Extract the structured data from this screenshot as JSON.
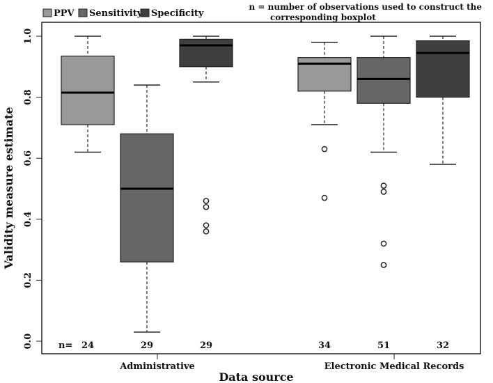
{
  "chart_data": {
    "type": "boxplot",
    "title": "",
    "xlabel": "Data source",
    "ylabel": "Validity measure estimate",
    "ylim": [
      0.0,
      1.0
    ],
    "yticks": [
      0.0,
      0.2,
      0.4,
      0.6,
      0.8,
      1.0
    ],
    "ytick_labels": [
      "0.0",
      "0.2",
      "0.4",
      "0.6",
      "0.8",
      "1.0"
    ],
    "categories": [
      "Administrative",
      "Electronic Medical Records"
    ],
    "legend": [
      {
        "label": "PPV",
        "color": "#999999"
      },
      {
        "label": "Sensitivity",
        "color": "#666666"
      },
      {
        "label": "Specificity",
        "color": "#3f3f3f"
      }
    ],
    "note_line1": "n = number of observations used to construct the",
    "note_line2": "corresponding boxplot",
    "n_prefix": "n=",
    "boxes": [
      {
        "group": "Administrative",
        "series": "PPV",
        "n": "24",
        "color": "#999999",
        "whisker_low": 0.62,
        "q1": 0.71,
        "median": 0.815,
        "q3": 0.935,
        "whisker_high": 1.0,
        "outliers": []
      },
      {
        "group": "Administrative",
        "series": "Sensitivity",
        "n": "29",
        "color": "#666666",
        "whisker_low": 0.03,
        "q1": 0.26,
        "median": 0.5,
        "q3": 0.68,
        "whisker_high": 0.84,
        "outliers": []
      },
      {
        "group": "Administrative",
        "series": "Specificity",
        "n": "29",
        "color": "#3f3f3f",
        "whisker_low": 0.85,
        "q1": 0.9,
        "median": 0.97,
        "q3": 0.99,
        "whisker_high": 1.0,
        "outliers": [
          0.46,
          0.44,
          0.38,
          0.36
        ]
      },
      {
        "group": "Electronic Medical Records",
        "series": "PPV",
        "n": "34",
        "color": "#999999",
        "whisker_low": 0.71,
        "q1": 0.82,
        "median": 0.91,
        "q3": 0.93,
        "whisker_high": 0.98,
        "outliers": [
          0.63,
          0.47
        ]
      },
      {
        "group": "Electronic Medical Records",
        "series": "Sensitivity",
        "n": "51",
        "color": "#666666",
        "whisker_low": 0.62,
        "q1": 0.78,
        "median": 0.86,
        "q3": 0.93,
        "whisker_high": 1.0,
        "outliers": [
          0.51,
          0.49,
          0.32,
          0.25
        ]
      },
      {
        "group": "Electronic Medical Records",
        "series": "Specificity",
        "n": "32",
        "color": "#3f3f3f",
        "whisker_low": 0.58,
        "q1": 0.8,
        "median": 0.945,
        "q3": 0.985,
        "whisker_high": 1.0,
        "outliers": []
      }
    ]
  }
}
